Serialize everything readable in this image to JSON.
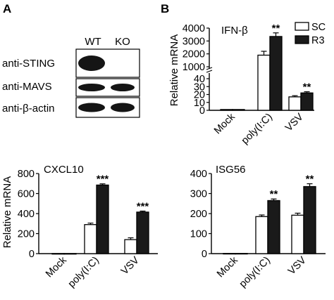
{
  "panels": {
    "a": "A",
    "b": "B"
  },
  "blot": {
    "lanes": [
      "WT",
      "KO"
    ],
    "rows": [
      {
        "label": "anti-STING",
        "bands": [
          1,
          0
        ]
      },
      {
        "label": "anti-MAVS",
        "bands": [
          1,
          1
        ]
      },
      {
        "label": "anti-β-actin",
        "bands": [
          1,
          1
        ]
      }
    ]
  },
  "legend": {
    "items": [
      {
        "label": "SC",
        "color": "#ffffff"
      },
      {
        "label": "R3",
        "color": "#1a1a1a"
      }
    ]
  },
  "chart_data": [
    {
      "type": "bar",
      "title": "IFN-β",
      "ylabel": "Relative mRNA",
      "categories": [
        "Mock",
        "poly(I:C)",
        "VSV"
      ],
      "series": [
        {
          "name": "SC",
          "color": "#ffffff",
          "values": [
            1,
            1900,
            17
          ],
          "errors": [
            0.3,
            300,
            1.5
          ]
        },
        {
          "name": "R3",
          "color": "#1a1a1a",
          "values": [
            1,
            3350,
            22
          ],
          "errors": [
            0.3,
            280,
            1.5
          ]
        }
      ],
      "broken_axis": {
        "lower": [
          0,
          40
        ],
        "upper": [
          1000,
          4000
        ]
      },
      "lower_ticks": [
        0,
        10,
        20,
        30,
        40
      ],
      "upper_ticks": [
        1000,
        2000,
        3000,
        4000
      ],
      "significance": [
        "",
        "**",
        "**"
      ]
    },
    {
      "type": "bar",
      "title": "CXCL10",
      "ylabel": "Relative mRNA",
      "categories": [
        "Mock",
        "poly(I:C)",
        "VSV"
      ],
      "series": [
        {
          "name": "SC",
          "color": "#ffffff",
          "values": [
            1,
            290,
            140
          ],
          "errors": [
            0.5,
            15,
            18
          ]
        },
        {
          "name": "R3",
          "color": "#1a1a1a",
          "values": [
            1,
            685,
            415
          ],
          "errors": [
            0.5,
            12,
            10
          ]
        }
      ],
      "ylim": [
        0,
        800
      ],
      "ticks": [
        0,
        200,
        400,
        600,
        800
      ],
      "significance": [
        "",
        "***",
        "***"
      ]
    },
    {
      "type": "bar",
      "title": "ISG56",
      "ylabel": "",
      "categories": [
        "Mock",
        "poly(I:C)",
        "VSV"
      ],
      "series": [
        {
          "name": "SC",
          "color": "#ffffff",
          "values": [
            1,
            185,
            192
          ],
          "errors": [
            0.5,
            8,
            10
          ]
        },
        {
          "name": "R3",
          "color": "#1a1a1a",
          "values": [
            1,
            265,
            335
          ],
          "errors": [
            0.5,
            8,
            14
          ]
        }
      ],
      "ylim": [
        0,
        400
      ],
      "ticks": [
        0,
        100,
        200,
        300,
        400
      ],
      "significance": [
        "",
        "**",
        "**"
      ]
    }
  ]
}
